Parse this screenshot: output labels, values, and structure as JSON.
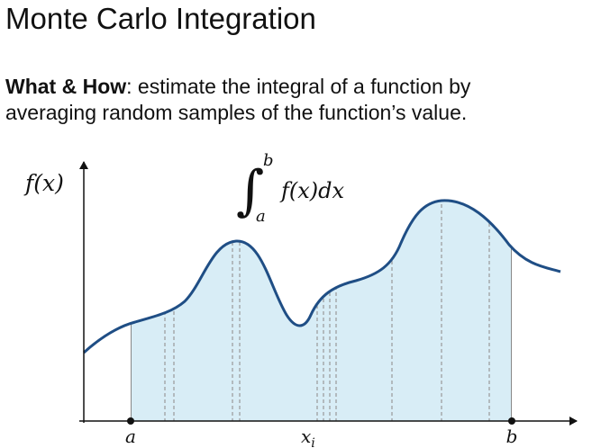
{
  "header": {
    "title": "Monte Carlo Integration"
  },
  "description": {
    "lines": [
      {
        "bold": "What & How",
        "text": ": estimate the integral of a function by"
      },
      {
        "text": "averaging random samples of the function’s value."
      }
    ]
  },
  "diagram": {
    "y_label": "f(x)",
    "integral": {
      "sign": "∫",
      "upper": "b",
      "lower": "a",
      "integrand": "f(x)dx"
    },
    "x_labels": {
      "start": "a",
      "sample": {
        "base": "x",
        "subscript": "i"
      },
      "end": "b"
    }
  }
}
